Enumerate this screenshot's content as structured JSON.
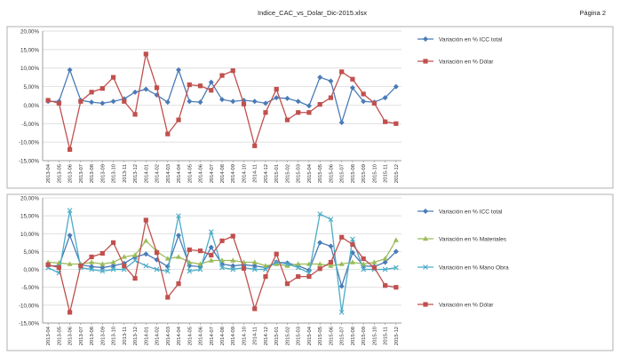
{
  "header": {
    "file_title": "Indice_CAC_vs_Dolar_Dic-2015.xlsx",
    "page_label": "Página 2"
  },
  "colors": {
    "icc_total": "#4a7bb7",
    "dolar": "#c0504d",
    "materiales": "#9bbb59",
    "mano_obra": "#4bacc6",
    "frame": "#b0b0b0",
    "grid": "#d4d4d4"
  },
  "chart_data": [
    {
      "type": "line",
      "title": "",
      "ylim": [
        -15,
        20
      ],
      "yticks": [
        "20,00%",
        "15,00%",
        "10,00%",
        "5,00%",
        "0,00%",
        "-5,00%",
        "-10,00%",
        "-15,00%"
      ],
      "grid": "horizontal",
      "legend_position": "right",
      "categories": [
        "2013-04",
        "2013-05",
        "2013-06",
        "2013-07",
        "2013-08",
        "2013-09",
        "2013-10",
        "2013-11",
        "2013-12",
        "2014-01",
        "2014-02",
        "2014-03",
        "2014-04",
        "2014-05",
        "2014-06",
        "2014-07",
        "2014-08",
        "2014-09",
        "2014-10",
        "2014-11",
        "2014-12",
        "2015-01",
        "2015-02",
        "2015-03",
        "2015-04",
        "2015-05",
        "2015-06",
        "2015-07",
        "2015-08",
        "2015-09",
        "2015-10",
        "2015-11",
        "2015-12"
      ],
      "series": [
        {
          "name": "Variación en % ICC total",
          "color_key": "icc_total",
          "marker": "diamond",
          "values": [
            1.0,
            1.0,
            9.5,
            1.3,
            0.8,
            0.5,
            1.0,
            1.7,
            3.5,
            4.3,
            2.7,
            0.8,
            9.5,
            1.0,
            0.8,
            6.2,
            1.5,
            1.0,
            1.3,
            1.0,
            0.5,
            2.0,
            1.8,
            1.0,
            -0.2,
            7.5,
            6.5,
            -4.7,
            4.7,
            1.0,
            0.8,
            2.0,
            5.0
          ]
        },
        {
          "name": "Variación en % Dólar",
          "color_key": "dolar",
          "marker": "square",
          "values": [
            1.3,
            0.5,
            -12.0,
            1.0,
            3.5,
            4.5,
            7.5,
            1.0,
            -2.5,
            13.8,
            4.7,
            -7.8,
            -4.0,
            5.5,
            5.2,
            4.0,
            8.0,
            9.3,
            0.3,
            -11.0,
            -2.0,
            4.3,
            -4.0,
            -2.0,
            -2.0,
            0.2,
            2.0,
            9.0,
            7.0,
            3.0,
            0.5,
            -4.5,
            -5.0
          ]
        }
      ]
    },
    {
      "type": "line",
      "title": "",
      "ylim": [
        -15,
        20
      ],
      "yticks": [
        "20,00%",
        "15,00%",
        "10,00%",
        "5,00%",
        "0,00%",
        "-5,00%",
        "-10,00%",
        "-15,00%"
      ],
      "grid": "horizontal",
      "legend_position": "right",
      "categories": [
        "2013-04",
        "2013-05",
        "2013-06",
        "2013-07",
        "2013-08",
        "2013-09",
        "2013-10",
        "2013-11",
        "2013-12",
        "2014-01",
        "2014-02",
        "2014-03",
        "2014-04",
        "2014-05",
        "2014-06",
        "2014-07",
        "2014-08",
        "2014-09",
        "2014-10",
        "2014-11",
        "2014-12",
        "2015-01",
        "2015-02",
        "2015-03",
        "2015-04",
        "2015-05",
        "2015-06",
        "2015-07",
        "2015-08",
        "2015-09",
        "2015-10",
        "2015-11",
        "2015-12"
      ],
      "series": [
        {
          "name": "Variación en % ICC total",
          "color_key": "icc_total",
          "marker": "diamond",
          "values": [
            1.0,
            1.0,
            9.5,
            1.3,
            0.8,
            0.5,
            1.0,
            1.7,
            3.5,
            4.3,
            2.7,
            0.8,
            9.5,
            1.0,
            0.8,
            6.2,
            1.5,
            1.0,
            1.3,
            1.0,
            0.5,
            2.0,
            1.8,
            1.0,
            -0.2,
            7.5,
            6.5,
            -4.7,
            4.7,
            1.0,
            0.8,
            2.0,
            5.0
          ]
        },
        {
          "name": "Variación en % Materiales",
          "color_key": "materiales",
          "marker": "triangle",
          "values": [
            2.0,
            1.8,
            1.5,
            1.5,
            2.0,
            1.5,
            2.0,
            3.5,
            4.0,
            8.0,
            5.0,
            3.0,
            3.5,
            2.0,
            1.5,
            2.5,
            2.5,
            2.5,
            2.0,
            2.0,
            1.0,
            1.5,
            1.0,
            1.5,
            1.5,
            1.5,
            1.0,
            1.5,
            2.0,
            1.5,
            2.0,
            3.0,
            8.2
          ]
        },
        {
          "name": "Variación en % Mano Obra",
          "color_key": "mano_obra",
          "marker": "cross",
          "values": [
            0.5,
            -1.0,
            16.5,
            0.5,
            0.0,
            -0.5,
            0.0,
            0.0,
            2.5,
            1.0,
            0.0,
            -0.5,
            15.0,
            -0.5,
            0.0,
            10.5,
            0.5,
            0.0,
            0.5,
            0.0,
            0.0,
            2.0,
            1.5,
            0.5,
            -1.0,
            15.5,
            14.0,
            -12.0,
            8.5,
            0.0,
            0.0,
            0.0,
            0.5
          ]
        },
        {
          "name": "Variación en % Dólar",
          "color_key": "dolar",
          "marker": "square",
          "values": [
            1.3,
            0.5,
            -12.0,
            1.0,
            3.5,
            4.5,
            7.5,
            1.0,
            -2.5,
            13.8,
            4.7,
            -7.8,
            -4.0,
            5.5,
            5.2,
            4.0,
            8.0,
            9.3,
            0.3,
            -11.0,
            -2.0,
            4.3,
            -4.0,
            -2.0,
            -2.0,
            0.2,
            2.0,
            9.0,
            7.0,
            3.0,
            0.5,
            -4.5,
            -5.0
          ]
        }
      ]
    }
  ]
}
